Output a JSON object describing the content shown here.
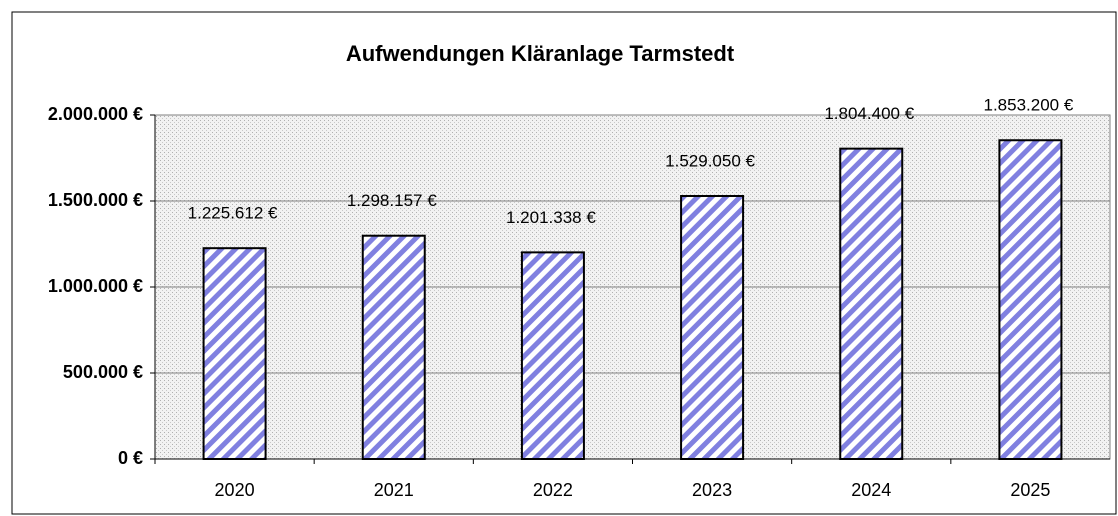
{
  "chart_data": {
    "type": "bar",
    "title": "Aufwendungen Kläranlage Tarmstedt",
    "categories": [
      "2020",
      "2021",
      "2022",
      "2023",
      "2024",
      "2025"
    ],
    "values": [
      1225612,
      1298157,
      1201338,
      1529050,
      1804400,
      1853200
    ],
    "value_labels": [
      "1.225.612 €",
      "1.298.157 €",
      "1.201.338 €",
      "1.529.050 €",
      "1.804.400 €",
      "1.853.200 €"
    ],
    "color": "#8080e0",
    "ylim": [
      0,
      2000000
    ],
    "yticks": [
      {
        "value": 0,
        "label": "0 €"
      },
      {
        "value": 500000,
        "label": "500.000 €"
      },
      {
        "value": 1000000,
        "label": "1.000.000 €"
      },
      {
        "value": 1500000,
        "label": "1.500.000 €"
      },
      {
        "value": 2000000,
        "label": "2.000.000 €"
      }
    ],
    "grid": true
  }
}
